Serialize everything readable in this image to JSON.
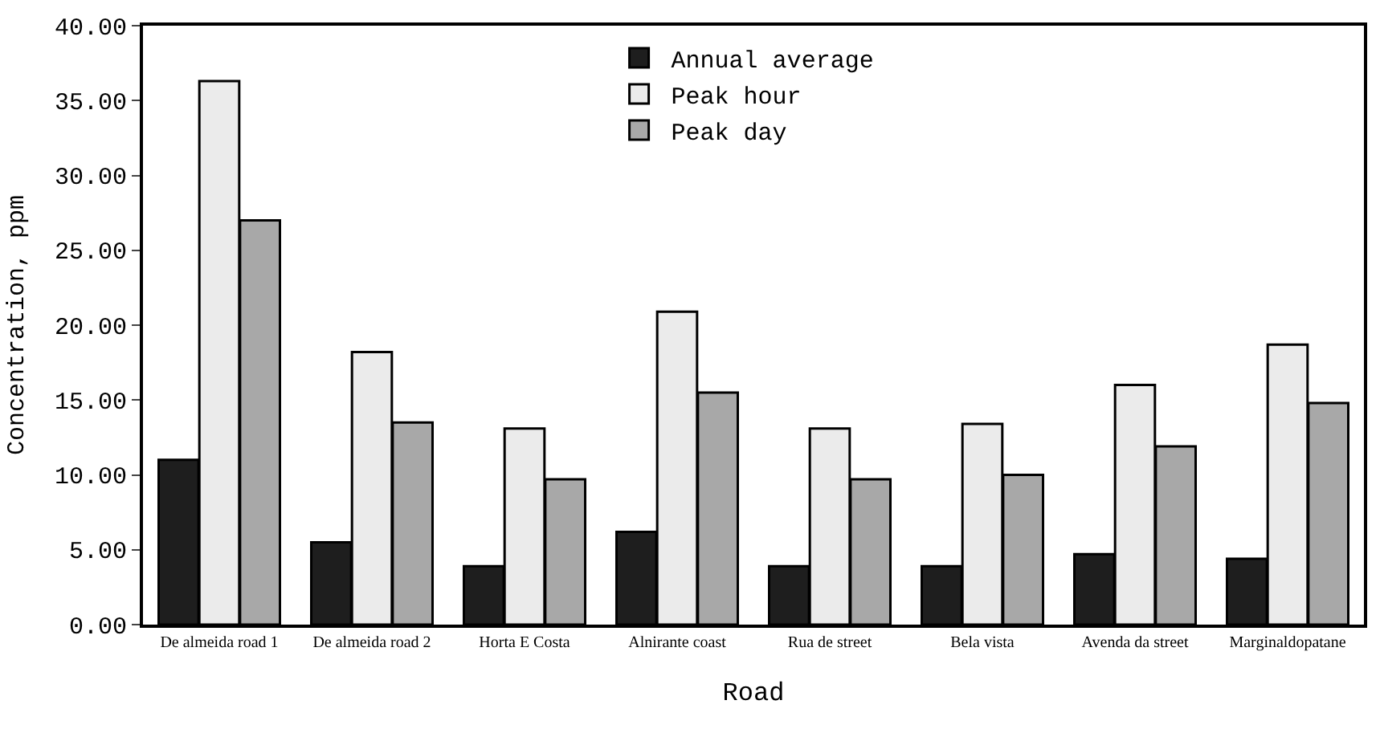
{
  "chart_data": {
    "type": "bar",
    "xlabel": "Road",
    "ylabel": "Concentration, ppm",
    "categories": [
      "De almeida road 1",
      "De almeida road 2",
      "Horta E Costa",
      "Alnirante coast",
      "Rua de street",
      "Bela vista",
      "Avenda da street",
      "Marginaldopatane"
    ],
    "series": [
      {
        "name": "Annual average",
        "color": "#1e1e1e",
        "values": [
          11.0,
          5.5,
          3.9,
          6.2,
          3.9,
          3.9,
          4.7,
          4.4
        ]
      },
      {
        "name": "Peak hour",
        "color": "#ebebeb",
        "values": [
          36.3,
          18.2,
          13.1,
          20.9,
          13.1,
          13.4,
          16.0,
          18.7
        ]
      },
      {
        "name": "Peak day",
        "color": "#a8a8a8",
        "values": [
          27.0,
          13.5,
          9.7,
          15.5,
          9.7,
          10.0,
          11.9,
          14.8
        ]
      }
    ],
    "ylim": [
      0,
      40
    ],
    "yticks": [
      {
        "value": 0,
        "label": "0.00"
      },
      {
        "value": 5,
        "label": "5.00"
      },
      {
        "value": 10,
        "label": "10.00"
      },
      {
        "value": 15,
        "label": "15.00"
      },
      {
        "value": 20,
        "label": "20.00"
      },
      {
        "value": 25,
        "label": "25.00"
      },
      {
        "value": 30,
        "label": "30.00"
      },
      {
        "value": 35,
        "label": "35.00"
      },
      {
        "value": 40,
        "label": "40.00"
      }
    ],
    "legend": "top"
  }
}
